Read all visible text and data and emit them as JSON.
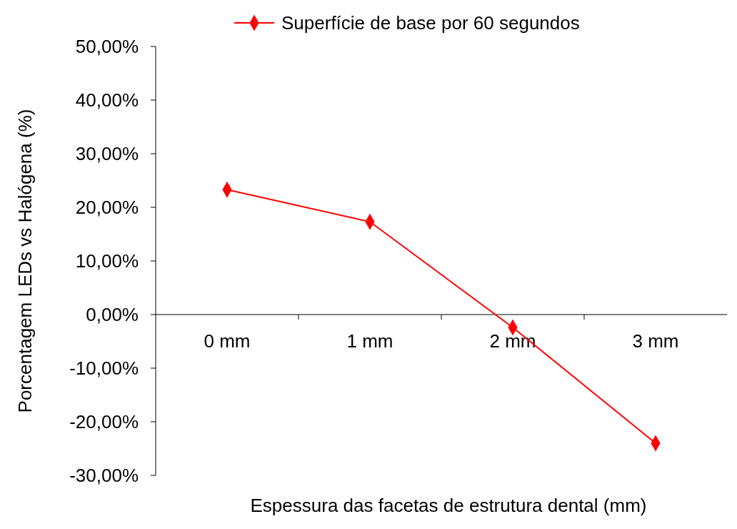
{
  "chart_data": {
    "type": "line",
    "xlabel": "Espessura das facetas de estrutura dental (mm)",
    "ylabel": "Porcentagem LEDs vs Halógena (%)",
    "categories": [
      "0 mm",
      "1 mm",
      "2 mm",
      "3 mm"
    ],
    "series": [
      {
        "name": "Superfície de base por 60 segundos",
        "color": "#ff0000",
        "values": [
          23.3,
          17.3,
          -2.4,
          -24.0
        ]
      }
    ],
    "ylim": [
      -30,
      50
    ],
    "yticks": [
      {
        "value": -30,
        "label": "-30,00%"
      },
      {
        "value": -20,
        "label": "-20,00%"
      },
      {
        "value": -10,
        "label": "-10,00%"
      },
      {
        "value": 0,
        "label": "0,00%"
      },
      {
        "value": 10,
        "label": "10,00%"
      },
      {
        "value": 20,
        "label": "20,00%"
      },
      {
        "value": 30,
        "label": "30,00%"
      },
      {
        "value": 40,
        "label": "40,00%"
      },
      {
        "value": 50,
        "label": "50,00%"
      }
    ],
    "grid": false,
    "legend": "top",
    "marker": "diamond",
    "line_style": "solid"
  }
}
